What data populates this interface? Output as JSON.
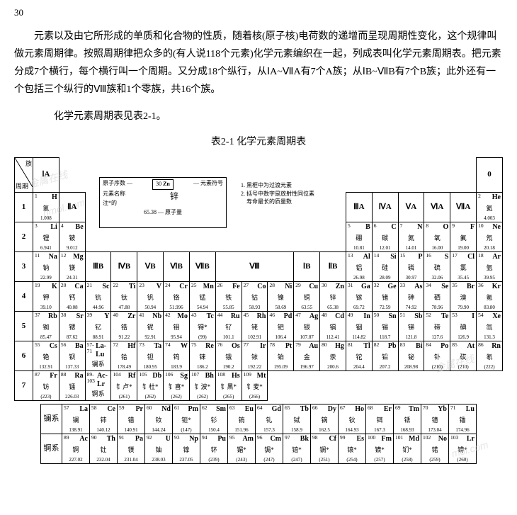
{
  "pageNumber": "30",
  "paragraph1": "元素以及由它所形成的单质和化合物的性质，随着核(原子核)电荷数的递增而呈现周期性变化，这个规律叫做元素周期律。按照周期律把众多的(有人说118个元素)化学元素编织在一起，列成表叫化学元素周期表。把元素分成7个横行，每个横行叫一个周期。又分成18个纵行，从ⅠA~ⅦA有7个A族；从ⅠB~ⅦB有7个B族；此外还有一个包括三个纵行的Ⅷ族和1个零族，共16个族。",
  "paragraph2": "化学元素周期表见表2-1。",
  "tableCaption": "表2-1 化学元素周期表",
  "diagLabels": {
    "period": "周期",
    "group": "族"
  },
  "groupHeaders": {
    "IA": "ⅠA",
    "IIA": "ⅡA",
    "IIIB": "ⅢB",
    "IVB": "ⅣB",
    "VB": "ⅤB",
    "VIB": "ⅥB",
    "VIIB": "ⅦB",
    "VIII": "Ⅷ",
    "IB": "ⅠB",
    "IIB": "ⅡB",
    "IIIA": "ⅢA",
    "IVA": "ⅣA",
    "VA": "ⅤA",
    "VIA": "ⅥA",
    "VIIA": "ⅦA",
    "zero": "0"
  },
  "periods": {
    "p1": "1",
    "p2": "2",
    "p3": "3",
    "p4": "4",
    "p5": "5",
    "p6": "6",
    "p7": "7"
  },
  "legend": {
    "z": "原子序数",
    "sym": "元素符号",
    "note": "注*的",
    "name": "元素名称",
    "mass": "原子量",
    "exZ": "30",
    "exSym": "Zn",
    "exName": "锌",
    "exMass": "65.38"
  },
  "notes": {
    "n1": "1. 黑框中为过渡元素",
    "n2": "2. 括号中数字是放射性同位素",
    "n3": "寿命最长的质量数"
  },
  "elements": {
    "H": {
      "z": "1",
      "s": "H",
      "n": "氢",
      "m": "1.008"
    },
    "He": {
      "z": "2",
      "s": "He",
      "n": "氦",
      "m": "4.003"
    },
    "Li": {
      "z": "3",
      "s": "Li",
      "n": "锂",
      "m": "6.941"
    },
    "Be": {
      "z": "4",
      "s": "Be",
      "n": "铍",
      "m": "9.012"
    },
    "B": {
      "z": "5",
      "s": "B",
      "n": "硼",
      "m": "10.81"
    },
    "C": {
      "z": "6",
      "s": "C",
      "n": "碳",
      "m": "12.01"
    },
    "N": {
      "z": "7",
      "s": "N",
      "n": "氮",
      "m": "14.01"
    },
    "O": {
      "z": "8",
      "s": "O",
      "n": "氧",
      "m": "16.00"
    },
    "F": {
      "z": "9",
      "s": "F",
      "n": "氟",
      "m": "19.00"
    },
    "Ne": {
      "z": "10",
      "s": "Ne",
      "n": "氖",
      "m": "20.18"
    },
    "Na": {
      "z": "11",
      "s": "Na",
      "n": "钠",
      "m": "22.99"
    },
    "Mg": {
      "z": "12",
      "s": "Mg",
      "n": "镁",
      "m": "24.31"
    },
    "Al": {
      "z": "13",
      "s": "Al",
      "n": "铝",
      "m": "26.98"
    },
    "Si": {
      "z": "14",
      "s": "Si",
      "n": "硅",
      "m": "28.09"
    },
    "P": {
      "z": "15",
      "s": "P",
      "n": "磷",
      "m": "30.97"
    },
    "S": {
      "z": "16",
      "s": "S",
      "n": "硫",
      "m": "32.06"
    },
    "Cl": {
      "z": "17",
      "s": "Cl",
      "n": "氯",
      "m": "35.45"
    },
    "Ar": {
      "z": "18",
      "s": "Ar",
      "n": "氩",
      "m": "39.95"
    },
    "K": {
      "z": "19",
      "s": "K",
      "n": "钾",
      "m": "39.10"
    },
    "Ca": {
      "z": "20",
      "s": "Ca",
      "n": "钙",
      "m": "40.08"
    },
    "Sc": {
      "z": "21",
      "s": "Sc",
      "n": "钪",
      "m": "44.96"
    },
    "Ti": {
      "z": "22",
      "s": "Ti",
      "n": "钛",
      "m": "47.88"
    },
    "V": {
      "z": "23",
      "s": "V",
      "n": "钒",
      "m": "50.94"
    },
    "Cr": {
      "z": "24",
      "s": "Cr",
      "n": "铬",
      "m": "51.996"
    },
    "Mn": {
      "z": "25",
      "s": "Mn",
      "n": "锰",
      "m": "54.94"
    },
    "Fe": {
      "z": "26",
      "s": "Fe",
      "n": "铁",
      "m": "55.85"
    },
    "Co": {
      "z": "27",
      "s": "Co",
      "n": "钴",
      "m": "58.93"
    },
    "Ni": {
      "z": "28",
      "s": "Ni",
      "n": "镍",
      "m": "58.69"
    },
    "Cu": {
      "z": "29",
      "s": "Cu",
      "n": "铜",
      "m": "63.55"
    },
    "Zn": {
      "z": "30",
      "s": "Zn",
      "n": "锌",
      "m": "65.38"
    },
    "Ga": {
      "z": "31",
      "s": "Ga",
      "n": "镓",
      "m": "69.72"
    },
    "Ge": {
      "z": "32",
      "s": "Ge",
      "n": "锗",
      "m": "72.59"
    },
    "As": {
      "z": "33",
      "s": "As",
      "n": "砷",
      "m": "74.92"
    },
    "Se": {
      "z": "34",
      "s": "Se",
      "n": "硒",
      "m": "78.96"
    },
    "Br": {
      "z": "35",
      "s": "Br",
      "n": "溴",
      "m": "79.90"
    },
    "Kr": {
      "z": "36",
      "s": "Kr",
      "n": "氪",
      "m": "83.80"
    },
    "Rb": {
      "z": "37",
      "s": "Rb",
      "n": "铷",
      "m": "85.47"
    },
    "Sr": {
      "z": "38",
      "s": "Sr",
      "n": "锶",
      "m": "87.62"
    },
    "Y": {
      "z": "39",
      "s": "Y",
      "n": "钇",
      "m": "88.91"
    },
    "Zr": {
      "z": "40",
      "s": "Zr",
      "n": "锆",
      "m": "91.22"
    },
    "Nb": {
      "z": "41",
      "s": "Nb",
      "n": "铌",
      "m": "92.91"
    },
    "Mo": {
      "z": "42",
      "s": "Mo",
      "n": "钼",
      "m": "95.94"
    },
    "Tc": {
      "z": "43",
      "s": "Tc",
      "n": "锝*",
      "m": "(99)"
    },
    "Ru": {
      "z": "44",
      "s": "Ru",
      "n": "钌",
      "m": "101.1"
    },
    "Rh": {
      "z": "45",
      "s": "Rh",
      "n": "铑",
      "m": "102.91"
    },
    "Pd": {
      "z": "46",
      "s": "Pd",
      "n": "钯",
      "m": "106.4"
    },
    "Ag": {
      "z": "47",
      "s": "Ag",
      "n": "银",
      "m": "107.87"
    },
    "Cd": {
      "z": "48",
      "s": "Cd",
      "n": "镉",
      "m": "112.41"
    },
    "In": {
      "z": "49",
      "s": "In",
      "n": "铟",
      "m": "114.82"
    },
    "Sn": {
      "z": "50",
      "s": "Sn",
      "n": "锡",
      "m": "118.7"
    },
    "Sb": {
      "z": "51",
      "s": "Sb",
      "n": "锑",
      "m": "121.8"
    },
    "Te": {
      "z": "52",
      "s": "Te",
      "n": "碲",
      "m": "127.6"
    },
    "I": {
      "z": "53",
      "s": "I",
      "n": "碘",
      "m": "126.9"
    },
    "Xe": {
      "z": "54",
      "s": "Xe",
      "n": "氙",
      "m": "131.3"
    },
    "Cs": {
      "z": "55",
      "s": "Cs",
      "n": "铯",
      "m": "132.91"
    },
    "Ba": {
      "z": "56",
      "s": "Ba",
      "n": "钡",
      "m": "137.33"
    },
    "LaLu": {
      "z": "57-71",
      "s": "La-Lu",
      "n": "镧系",
      "m": ""
    },
    "Hf": {
      "z": "72",
      "s": "Hf",
      "n": "铪",
      "m": "178.49"
    },
    "Ta": {
      "z": "73",
      "s": "Ta",
      "n": "钽",
      "m": "180.95"
    },
    "W": {
      "z": "74",
      "s": "W",
      "n": "钨",
      "m": "183.9"
    },
    "Re": {
      "z": "75",
      "s": "Re",
      "n": "铼",
      "m": "186.2"
    },
    "Os": {
      "z": "76",
      "s": "Os",
      "n": "锇",
      "m": "190.2"
    },
    "Ir": {
      "z": "77",
      "s": "Ir",
      "n": "铱",
      "m": "192.22"
    },
    "Pt": {
      "z": "78",
      "s": "Pt",
      "n": "铂",
      "m": "195.09"
    },
    "Au": {
      "z": "79",
      "s": "Au",
      "n": "金",
      "m": "196.97"
    },
    "Hg": {
      "z": "80",
      "s": "Hg",
      "n": "汞",
      "m": "200.6"
    },
    "Tl": {
      "z": "81",
      "s": "Tl",
      "n": "铊",
      "m": "204.4"
    },
    "Pb": {
      "z": "82",
      "s": "Pb",
      "n": "铅",
      "m": "207.2"
    },
    "Bi": {
      "z": "83",
      "s": "Bi",
      "n": "铋",
      "m": "208.98"
    },
    "Po": {
      "z": "84",
      "s": "Po",
      "n": "钋",
      "m": "(210)"
    },
    "At": {
      "z": "85",
      "s": "At",
      "n": "砹",
      "m": "(210)"
    },
    "Rn": {
      "z": "86",
      "s": "Rn",
      "n": "氡",
      "m": "(222)"
    },
    "Fr": {
      "z": "87",
      "s": "Fr",
      "n": "钫",
      "m": "(223)"
    },
    "Ra": {
      "z": "88",
      "s": "Ra",
      "n": "镭",
      "m": "226.03"
    },
    "AcLr": {
      "z": "89-103",
      "s": "Ac-Lr",
      "n": "锕系",
      "m": ""
    },
    "Rf": {
      "z": "104",
      "s": "Rf",
      "n": "钅卢*",
      "m": "(261)"
    },
    "Db": {
      "z": "105",
      "s": "Db",
      "n": "钅杜*",
      "m": "(262)"
    },
    "Sg": {
      "z": "106",
      "s": "Sg",
      "n": "钅喜*",
      "m": "(262)"
    },
    "Bh": {
      "z": "107",
      "s": "Bh",
      "n": "钅波*",
      "m": "(262)"
    },
    "Hs": {
      "z": "108",
      "s": "Hs",
      "n": "钅黑*",
      "m": "(265)"
    },
    "Mt": {
      "z": "109",
      "s": "Mt",
      "n": "钅麦*",
      "m": "(266)"
    }
  },
  "series": {
    "lanLabel": "镧系",
    "actLabel": "锕系",
    "lan": [
      {
        "z": "57",
        "s": "La",
        "n": "镧",
        "m": "138.91"
      },
      {
        "z": "58",
        "s": "Ce",
        "n": "铈",
        "m": "140.12"
      },
      {
        "z": "59",
        "s": "Pr",
        "n": "镨",
        "m": "140.91"
      },
      {
        "z": "60",
        "s": "Nd",
        "n": "钕",
        "m": "144.24"
      },
      {
        "z": "61",
        "s": "Pm",
        "n": "钷*",
        "m": "(147)"
      },
      {
        "z": "62",
        "s": "Sm",
        "n": "钐",
        "m": "150.4"
      },
      {
        "z": "63",
        "s": "Eu",
        "n": "铕",
        "m": "151.96"
      },
      {
        "z": "64",
        "s": "Gd",
        "n": "钆",
        "m": "157.3"
      },
      {
        "z": "65",
        "s": "Tb",
        "n": "铽",
        "m": "158.9"
      },
      {
        "z": "66",
        "s": "Dy",
        "n": "镝",
        "m": "162.5"
      },
      {
        "z": "67",
        "s": "Ho",
        "n": "钬",
        "m": "164.93"
      },
      {
        "z": "68",
        "s": "Er",
        "n": "铒",
        "m": "167.3"
      },
      {
        "z": "69",
        "s": "Tm",
        "n": "铥",
        "m": "168.93"
      },
      {
        "z": "70",
        "s": "Yb",
        "n": "镱",
        "m": "173.04"
      },
      {
        "z": "71",
        "s": "Lu",
        "n": "镥",
        "m": "174.96"
      }
    ],
    "act": [
      {
        "z": "89",
        "s": "Ac",
        "n": "锕",
        "m": "227.02"
      },
      {
        "z": "90",
        "s": "Th",
        "n": "钍",
        "m": "232.04"
      },
      {
        "z": "91",
        "s": "Pa",
        "n": "镤",
        "m": "231.04"
      },
      {
        "z": "92",
        "s": "U",
        "n": "铀",
        "m": "238.03"
      },
      {
        "z": "93",
        "s": "Np",
        "n": "镎",
        "m": "237.05"
      },
      {
        "z": "94",
        "s": "Pu",
        "n": "钚",
        "m": "(239)"
      },
      {
        "z": "95",
        "s": "Am",
        "n": "镅*",
        "m": "(243)"
      },
      {
        "z": "96",
        "s": "Cm",
        "n": "锔*",
        "m": "(247)"
      },
      {
        "z": "97",
        "s": "Bk",
        "n": "锫*",
        "m": "(247)"
      },
      {
        "z": "98",
        "s": "Cf",
        "n": "锎*",
        "m": "(251)"
      },
      {
        "z": "99",
        "s": "Es",
        "n": "锿*",
        "m": "(254)"
      },
      {
        "z": "100",
        "s": "Fm",
        "n": "镄*",
        "m": "(257)"
      },
      {
        "z": "101",
        "s": "Md",
        "n": "钔*",
        "m": "(258)"
      },
      {
        "z": "102",
        "s": "No",
        "n": "锘",
        "m": "(259)"
      },
      {
        "z": "103",
        "s": "Lr",
        "n": "铹*",
        "m": "(260)"
      }
    ]
  },
  "watermarks": {
    "w1": "mol.com",
    "w2": "nmol.com",
    "w3": "金属在线"
  }
}
